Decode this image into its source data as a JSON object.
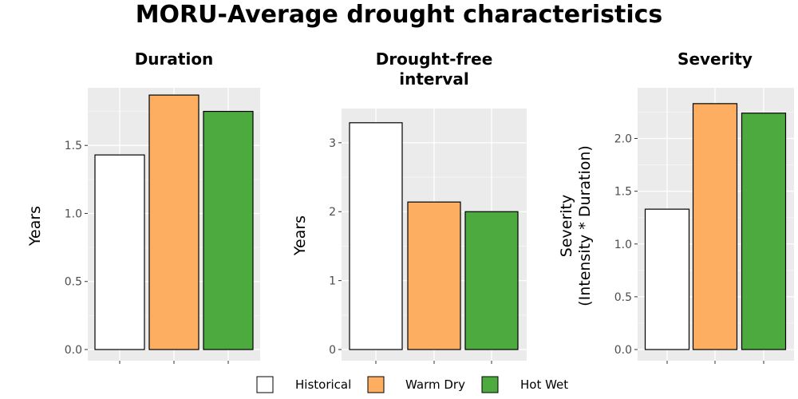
{
  "title": "MORU-Average drought characteristics",
  "legend": [
    {
      "label": "Historical",
      "color": "#FFFFFF"
    },
    {
      "label": "Warm Dry",
      "color": "#FDAE61"
    },
    {
      "label": "Hot Wet",
      "color": "#4DAA3F"
    }
  ],
  "chart_data": [
    {
      "type": "bar",
      "title": "Duration",
      "ylabel": "Years",
      "categories": [
        "Historical",
        "Warm Dry",
        "Hot Wet"
      ],
      "values": [
        1.43,
        1.87,
        1.75
      ],
      "ylim": [
        0,
        1.9
      ],
      "yticks": [
        0.0,
        0.5,
        1.0,
        1.5
      ],
      "ytick_labels": [
        "0.0",
        "0.5",
        "1.0",
        "1.5"
      ]
    },
    {
      "type": "bar",
      "title_lines": [
        "Drought-free",
        "interval"
      ],
      "ylabel": "Years",
      "categories": [
        "Historical",
        "Warm Dry",
        "Hot Wet"
      ],
      "values": [
        3.29,
        2.14,
        2.0
      ],
      "ylim": [
        0,
        3.45
      ],
      "yticks": [
        0,
        1,
        2,
        3
      ],
      "ytick_labels": [
        "0",
        "1",
        "2",
        "3"
      ]
    },
    {
      "type": "bar",
      "title": "Severity",
      "ylabel_lines": [
        "Severity",
        "(Intensity * Duration)"
      ],
      "categories": [
        "Historical",
        "Warm Dry",
        "Hot Wet"
      ],
      "values": [
        1.33,
        2.33,
        2.24
      ],
      "ylim": [
        0,
        2.45
      ],
      "yticks": [
        0.0,
        0.5,
        1.0,
        1.5,
        2.0
      ],
      "ytick_labels": [
        "0.0",
        "0.5",
        "1.0",
        "1.5",
        "2.0"
      ]
    }
  ]
}
